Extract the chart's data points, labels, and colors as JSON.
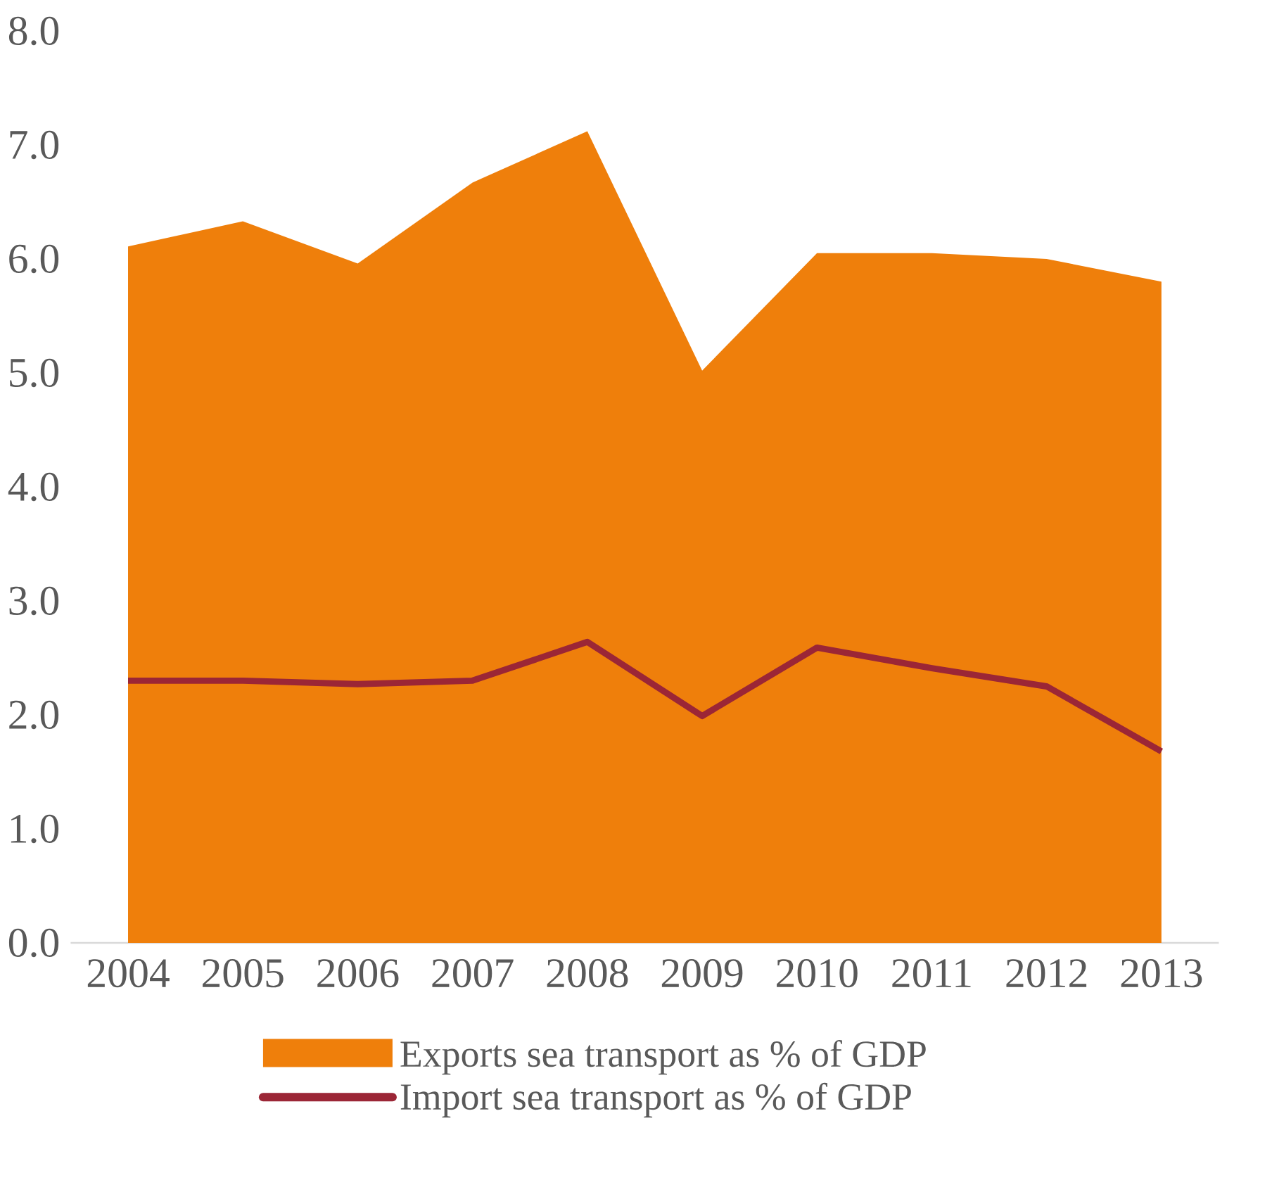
{
  "chart_data": {
    "type": "area",
    "categories": [
      "2004",
      "2005",
      "2006",
      "2007",
      "2008",
      "2009",
      "2010",
      "2011",
      "2012",
      "2013"
    ],
    "series": [
      {
        "name": "Exports sea transport as % of GDP",
        "color": "#ef7f0b",
        "values": [
          6.11,
          6.33,
          5.96,
          6.67,
          7.12,
          5.02,
          6.05,
          6.05,
          6.0,
          5.8
        ]
      },
      {
        "name": "Import sea transport as % of GDP",
        "type": "line",
        "color": "#9b2636",
        "values": [
          2.3,
          2.3,
          2.27,
          2.3,
          2.64,
          1.99,
          2.59,
          2.41,
          2.25,
          1.68
        ]
      }
    ],
    "ylim": [
      0,
      8
    ],
    "yticks": [
      {
        "value": 0,
        "label": "0.0"
      },
      {
        "value": 1,
        "label": "1.0"
      },
      {
        "value": 2,
        "label": "2.0"
      },
      {
        "value": 3,
        "label": "3.0"
      },
      {
        "value": 4,
        "label": "4.0"
      },
      {
        "value": 5,
        "label": "5.0"
      },
      {
        "value": 6,
        "label": "6.0"
      },
      {
        "value": 7,
        "label": "7.0"
      },
      {
        "value": 8,
        "label": "8.0"
      }
    ],
    "legend": "bottom"
  }
}
